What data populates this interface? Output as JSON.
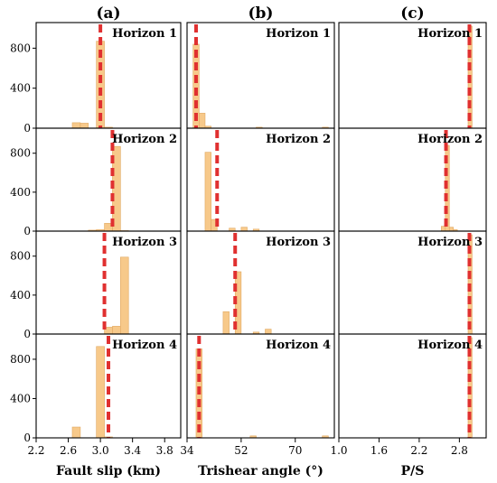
{
  "chart_data": {
    "type": "bar",
    "layout": "3 columns x 4 rows of histograms with a red dashed reference line",
    "column_labels": [
      "(a)",
      "(b)",
      "(c)"
    ],
    "row_labels": [
      "Horizon 1",
      "Horizon 2",
      "Horizon 3",
      "Horizon 4"
    ],
    "colors": {
      "bar_fill": "#f7c98a",
      "bar_stroke": "#e0a860",
      "reference_line": "#e03030"
    },
    "y_ticks": [
      0,
      400,
      800
    ],
    "ylim": [
      0,
      1020
    ],
    "columns": [
      {
        "xlabel": "Fault slip (km)",
        "x_ticks": [
          2.2,
          2.6,
          3.0,
          3.4,
          3.8
        ],
        "x_tick_labels": [
          "2.2",
          "2.6",
          "3.0",
          "3.4",
          "3.8"
        ],
        "xlim": [
          2.2,
          4.0
        ],
        "bin_width": 0.1,
        "rows": [
          {
            "bins": [
              {
                "x": 2.7,
                "y": 55
              },
              {
                "x": 2.8,
                "y": 50
              },
              {
                "x": 3.0,
                "y": 870
              },
              {
                "x": 3.1,
                "y": 10
              }
            ],
            "reference": 3.0
          },
          {
            "bins": [
              {
                "x": 2.9,
                "y": 10
              },
              {
                "x": 3.0,
                "y": 15
              },
              {
                "x": 3.1,
                "y": 80
              },
              {
                "x": 3.2,
                "y": 870
              },
              {
                "x": 3.3,
                "y": 5
              }
            ],
            "reference": 3.15
          },
          {
            "bins": [
              {
                "x": 3.1,
                "y": 70
              },
              {
                "x": 3.2,
                "y": 80
              },
              {
                "x": 3.3,
                "y": 790
              }
            ],
            "reference": 3.05
          },
          {
            "bins": [
              {
                "x": 2.7,
                "y": 110
              },
              {
                "x": 3.0,
                "y": 930
              },
              {
                "x": 3.1,
                "y": 10
              }
            ],
            "reference": 3.1
          }
        ]
      },
      {
        "xlabel": "Trishear angle (°)",
        "x_ticks": [
          34,
          52,
          70
        ],
        "x_tick_labels": [
          "34",
          "52",
          "70"
        ],
        "xlim": [
          34,
          83
        ],
        "bin_width": 2,
        "rows": [
          {
            "bins": [
              {
                "x": 37,
                "y": 840
              },
              {
                "x": 39,
                "y": 150
              },
              {
                "x": 41,
                "y": 20
              },
              {
                "x": 58,
                "y": 10
              },
              {
                "x": 80,
                "y": 10
              }
            ],
            "reference": 37
          },
          {
            "bins": [
              {
                "x": 41,
                "y": 810
              },
              {
                "x": 43,
                "y": 120
              },
              {
                "x": 49,
                "y": 30
              },
              {
                "x": 53,
                "y": 40
              },
              {
                "x": 57,
                "y": 20
              }
            ],
            "reference": 44
          },
          {
            "bins": [
              {
                "x": 47,
                "y": 230
              },
              {
                "x": 51,
                "y": 640
              },
              {
                "x": 57,
                "y": 20
              },
              {
                "x": 61,
                "y": 50
              }
            ],
            "reference": 50
          },
          {
            "bins": [
              {
                "x": 38,
                "y": 905
              },
              {
                "x": 56,
                "y": 20
              },
              {
                "x": 80,
                "y": 20
              }
            ],
            "reference": 38
          }
        ]
      },
      {
        "xlabel": "P/S",
        "x_ticks": [
          1.0,
          1.6,
          2.2,
          2.8
        ],
        "x_tick_labels": [
          "1.0",
          "1.6",
          "2.2",
          "2.8"
        ],
        "xlim": [
          1.0,
          3.2
        ],
        "bin_width": 0.06,
        "rows": [
          {
            "bins": [
              {
                "x": 2.96,
                "y": 1020
              }
            ],
            "reference": 2.95
          },
          {
            "bins": [
              {
                "x": 2.56,
                "y": 50
              },
              {
                "x": 2.62,
                "y": 880
              },
              {
                "x": 2.68,
                "y": 40
              },
              {
                "x": 2.74,
                "y": 15
              }
            ],
            "reference": 2.6
          },
          {
            "bins": [
              {
                "x": 2.96,
                "y": 1020
              }
            ],
            "reference": 2.95
          },
          {
            "bins": [
              {
                "x": 2.96,
                "y": 1020
              }
            ],
            "reference": 2.95
          }
        ]
      }
    ]
  }
}
